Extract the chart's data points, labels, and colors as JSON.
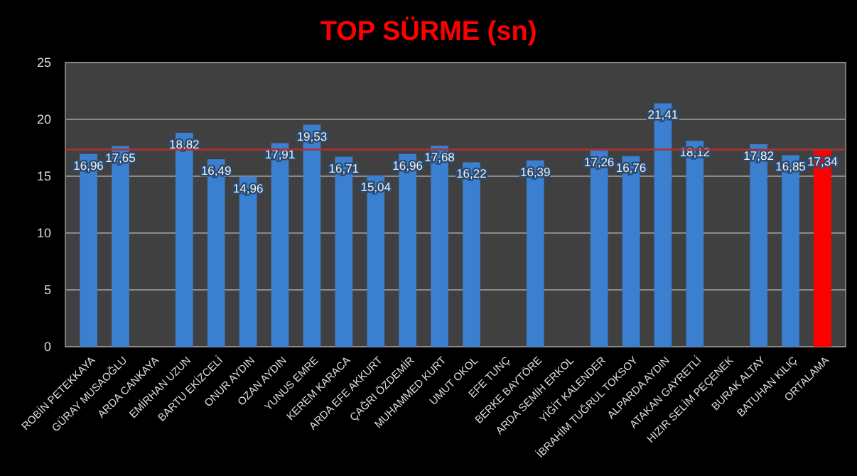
{
  "chart_data": {
    "type": "bar",
    "title": "TOP SÜRME (sn)",
    "categories": [
      "ROBİN PETEKKAYA",
      "GÜRAY MUSAOĞLU",
      "ARDA CANKAYA",
      "EMİRHAN UZUN",
      "BARTU EKİZCELİ",
      "ONUR AYDIN",
      "OZAN AYDIN",
      "YUNUS EMRE",
      "KEREM KARACA",
      "ARDA EFE AKKURT",
      "ÇAĞRI ÖZDEMİR",
      "MUHAMMED KURT",
      "UMUT OKOL",
      "EFE TUNÇ",
      "BERKE BAYTÖRE",
      "ARDA SEMİH ERKOL",
      "YİĞİT KALENDER",
      "İBRAHİM TUĞRUL TOKSOY",
      "ALPARDA AYDIN",
      "ATAKAN GAYRETLİ",
      "HIZIR SELİM PEÇENEK",
      "BURAK ALTAY",
      "BATUHAN KILIÇ",
      "ORTALAMA"
    ],
    "values": [
      16.96,
      17.65,
      null,
      18.82,
      16.49,
      14.96,
      17.91,
      19.53,
      16.71,
      15.04,
      16.96,
      17.68,
      16.22,
      null,
      16.39,
      null,
      17.26,
      16.76,
      21.41,
      18.12,
      null,
      17.82,
      16.85,
      17.34
    ],
    "value_labels": [
      "16,96",
      "17,65",
      null,
      "18,82",
      "16,49",
      "14,96",
      "17,91",
      "19,53",
      "16,71",
      "15,04",
      "16,96",
      "17,68",
      "16,22",
      null,
      "16,39",
      null,
      "17,26",
      "16,76",
      "21,41",
      "18,12",
      null,
      "17,82",
      "16,85",
      "17,34"
    ],
    "colors": [
      "#3a7fd0",
      "#3a7fd0",
      null,
      "#3a7fd0",
      "#3a7fd0",
      "#3a7fd0",
      "#3a7fd0",
      "#3a7fd0",
      "#3a7fd0",
      "#3a7fd0",
      "#3a7fd0",
      "#3a7fd0",
      "#3a7fd0",
      null,
      "#3a7fd0",
      null,
      "#3a7fd0",
      "#3a7fd0",
      "#3a7fd0",
      "#3a7fd0",
      null,
      "#3a7fd0",
      "#3a7fd0",
      "#ff0000"
    ],
    "ylim": [
      0,
      25
    ],
    "yticks": [
      0,
      5,
      10,
      15,
      20,
      25
    ],
    "grid": "y",
    "ref_lines": [
      {
        "axis": "y",
        "value": 17.34,
        "color": "#b03030"
      }
    ]
  }
}
